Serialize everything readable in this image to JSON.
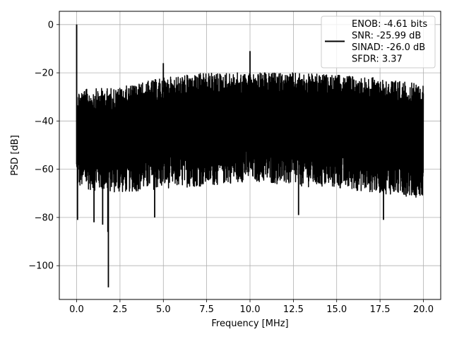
{
  "chart_data": {
    "type": "line",
    "xlabel": "Frequency [MHz]",
    "ylabel": "PSD [dB]",
    "xlim": [
      -1.0,
      21.0
    ],
    "ylim": [
      -114.0,
      5.5
    ],
    "xticks": [
      0.0,
      2.5,
      5.0,
      7.5,
      10.0,
      12.5,
      15.0,
      17.5,
      20.0
    ],
    "xtick_labels": [
      "0.0",
      "2.5",
      "5.0",
      "7.5",
      "10.0",
      "12.5",
      "15.0",
      "17.5",
      "20.0"
    ],
    "yticks": [
      0,
      -20,
      -40,
      -60,
      -80,
      -100
    ],
    "ytick_labels": [
      "0",
      "−20",
      "−40",
      "−60",
      "−80",
      "−100"
    ],
    "grid": true,
    "legend_position": "top-right",
    "series": [
      {
        "name": "ENOB: -4.61 bits\nSNR: -25.99 dB\nSINAD: -26.0 dB\nSFDR: 3.37",
        "color": "#000000",
        "freq_range": [
          0.0,
          20.0
        ],
        "dc_peak": {
          "x": 0.0,
          "y": 0.0
        },
        "noise_upper_envelope": [
          [
            0.0,
            -27
          ],
          [
            2.5,
            -26
          ],
          [
            5.0,
            -22
          ],
          [
            7.5,
            -20
          ],
          [
            10.0,
            -20
          ],
          [
            12.5,
            -20
          ],
          [
            15.0,
            -21
          ],
          [
            17.5,
            -22
          ],
          [
            20.0,
            -25
          ]
        ],
        "noise_lower_envelope": [
          [
            0.0,
            -68
          ],
          [
            2.5,
            -70
          ],
          [
            5.0,
            -68
          ],
          [
            7.5,
            -67
          ],
          [
            10.0,
            -65
          ],
          [
            12.5,
            -67
          ],
          [
            15.0,
            -68
          ],
          [
            17.5,
            -70
          ],
          [
            20.0,
            -72
          ]
        ],
        "spurs": [
          {
            "x": 0.05,
            "y": -81
          },
          {
            "x": 1.0,
            "y": -82
          },
          {
            "x": 1.5,
            "y": -83
          },
          {
            "x": 1.8,
            "y": -86
          },
          {
            "x": 1.83,
            "y": -109
          },
          {
            "x": 4.5,
            "y": -80
          },
          {
            "x": 5.0,
            "y": -16
          },
          {
            "x": 10.0,
            "y": -11
          },
          {
            "x": 12.8,
            "y": -79
          },
          {
            "x": 17.7,
            "y": -81
          }
        ]
      }
    ]
  }
}
